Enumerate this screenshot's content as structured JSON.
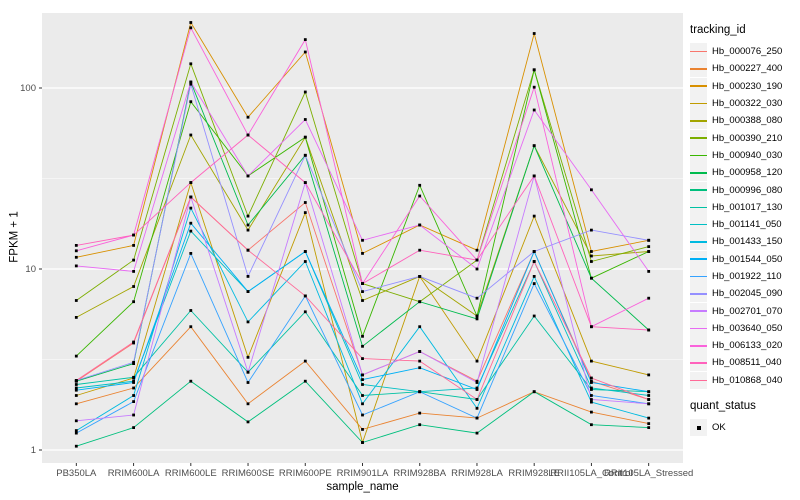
{
  "chart_data": {
    "type": "line",
    "xlabel": "sample_name",
    "ylabel": "FPKM + 1",
    "y_scale": "log10",
    "y_ticks": [
      1,
      10,
      100
    ],
    "y_minor_ticks": [
      3.1623,
      31.623
    ],
    "ylim": [
      0.85,
      260
    ],
    "legend_title": "tracking_id",
    "legend_position": "right",
    "grid": "on",
    "point_legend": {
      "title": "quant_status",
      "label": "OK",
      "shape": "square",
      "color": "#000000"
    },
    "categories": [
      "PB350LA",
      "RRIM600LA",
      "RRIM600LE",
      "RRIM600SE",
      "RRIM600PE",
      "RRIM901LA",
      "RRIM928BA",
      "RRIM928LA",
      "RRIM928LE",
      "RRII105LA_Control",
      "RRII105LA_Stressed"
    ],
    "series": [
      {
        "name": "Hb_000076_250",
        "color": "#F8766D",
        "values": [
          2.4,
          3.9,
          25,
          12.7,
          23.3,
          2.6,
          3.5,
          2.4,
          12.5,
          2.4,
          1.9
        ]
      },
      {
        "name": "Hb_000227_400",
        "color": "#EA8331",
        "values": [
          1.8,
          2.2,
          4.8,
          1.8,
          3.1,
          1.3,
          1.6,
          1.5,
          2.1,
          1.62,
          1.4
        ]
      },
      {
        "name": "Hb_000230_190",
        "color": "#D89000",
        "values": [
          11.6,
          13.5,
          230,
          69,
          158,
          12.2,
          17.5,
          12.7,
          200,
          12.5,
          14.4
        ]
      },
      {
        "name": "Hb_000322_030",
        "color": "#C09B00",
        "values": [
          2.0,
          2.5,
          30,
          3.25,
          20.5,
          1.1,
          9.1,
          3.1,
          19.6,
          3.1,
          2.6
        ]
      },
      {
        "name": "Hb_000388_080",
        "color": "#A3A500",
        "values": [
          5.4,
          8.0,
          55,
          16.4,
          53.5,
          6.7,
          9.1,
          5.5,
          48,
          11.8,
          12.5
        ]
      },
      {
        "name": "Hb_000390_210",
        "color": "#7CAE00",
        "values": [
          6.7,
          11.2,
          136,
          19.6,
          95,
          8.3,
          6.6,
          11.2,
          126,
          11.0,
          13.3
        ]
      },
      {
        "name": "Hb_000940_030",
        "color": "#39B600",
        "values": [
          3.3,
          6.6,
          84,
          32.7,
          53.5,
          4.25,
          29,
          5.5,
          126,
          8.9,
          12.5
        ]
      },
      {
        "name": "Hb_000958_120",
        "color": "#00BB4E",
        "values": [
          2.4,
          3.0,
          108,
          17.5,
          42.5,
          3.74,
          6.6,
          5.3,
          48,
          8.9,
          4.6
        ]
      },
      {
        "name": "Hb_000996_080",
        "color": "#00BF7D",
        "values": [
          1.05,
          1.33,
          2.4,
          1.43,
          2.4,
          1.1,
          1.38,
          1.24,
          2.1,
          1.38,
          1.33
        ]
      },
      {
        "name": "Hb_001017_130",
        "color": "#00C1A3",
        "values": [
          2.3,
          2.52,
          5.9,
          2.69,
          5.8,
          2.0,
          2.1,
          1.9,
          5.5,
          2.16,
          2.1
        ]
      },
      {
        "name": "Hb_001141_050",
        "color": "#00BFC4",
        "values": [
          2.2,
          2.4,
          16.2,
          7.5,
          12.5,
          2.3,
          2.1,
          2.2,
          11.0,
          2.2,
          2.0
        ]
      },
      {
        "name": "Hb_001433_150",
        "color": "#00BAE0",
        "values": [
          1.28,
          2.0,
          21.7,
          5.1,
          11.0,
          1.8,
          4.8,
          1.7,
          9.1,
          1.84,
          1.5
        ]
      },
      {
        "name": "Hb_001544_050",
        "color": "#00B0F6",
        "values": [
          2.14,
          2.36,
          17.9,
          7.5,
          12.5,
          2.45,
          2.85,
          2.16,
          12.5,
          2.36,
          2.1
        ]
      },
      {
        "name": "Hb_001922_110",
        "color": "#35A2FF",
        "values": [
          1.24,
          1.85,
          12.2,
          2.36,
          7.1,
          1.56,
          2.1,
          1.5,
          8.3,
          2.0,
          1.8
        ]
      },
      {
        "name": "Hb_002045_090",
        "color": "#9590FF",
        "values": [
          2.42,
          3.05,
          105,
          9.1,
          42.5,
          7.5,
          9.1,
          6.9,
          12.5,
          16.4,
          14.4
        ]
      },
      {
        "name": "Hb_002701_070",
        "color": "#C77CFF",
        "values": [
          1.45,
          1.56,
          25,
          2.69,
          30,
          2.6,
          3.5,
          2.36,
          32.7,
          1.9,
          1.8
        ]
      },
      {
        "name": "Hb_003640_050",
        "color": "#E76BF3",
        "values": [
          10.4,
          9.7,
          108,
          32.7,
          67,
          14.4,
          17.5,
          10.0,
          75.6,
          27.4,
          9.7
        ]
      },
      {
        "name": "Hb_006133_020",
        "color": "#FA62DB",
        "values": [
          12.6,
          15.4,
          215,
          55,
          185,
          8.3,
          25.3,
          11.2,
          101,
          4.8,
          6.9
        ]
      },
      {
        "name": "Hb_008511_040",
        "color": "#FF62BC",
        "values": [
          13.5,
          15.4,
          30,
          55,
          30,
          8.3,
          12.7,
          11.2,
          32.7,
          4.8,
          4.6
        ]
      },
      {
        "name": "Hb_010868_040",
        "color": "#FF6A98",
        "values": [
          2.42,
          3.95,
          25,
          12.7,
          7.1,
          3.2,
          3.1,
          1.9,
          11.0,
          2.5,
          1.9
        ]
      }
    ]
  },
  "theme": {
    "panel_bg": "#EBEBEB",
    "grid_color": "#FFFFFF",
    "key_bg": "#F2F2F2",
    "axis_text_color": "#4D4D4D",
    "tick_color": "#333333",
    "point_color": "#000000"
  }
}
